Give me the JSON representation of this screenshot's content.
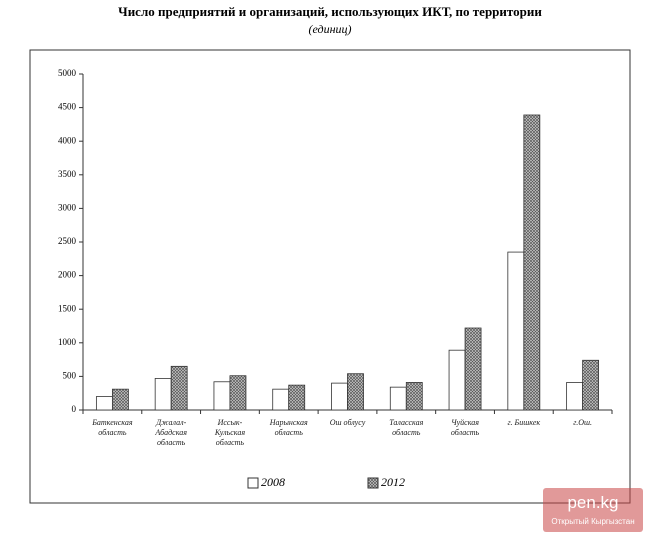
{
  "chart_data": {
    "type": "bar",
    "title": "Число предприятий и организаций, использующих ИКТ, по территории",
    "subtitle": "(единиц)",
    "categories": [
      "Баткенская область",
      "Джалал-Абадская область",
      "Иссык-Кульская область",
      "Нарынская область",
      "Ош облусу",
      "Таласская область",
      "Чуйская область",
      "г. Бишкек",
      "г.Ош."
    ],
    "series": [
      {
        "name": "2008",
        "color": "#ffffff",
        "hatch": false,
        "values": [
          200,
          470,
          420,
          310,
          400,
          340,
          890,
          2350,
          410
        ]
      },
      {
        "name": "2012",
        "color": "#9a9a9a",
        "hatch": true,
        "values": [
          310,
          650,
          510,
          370,
          540,
          410,
          1220,
          4390,
          740
        ]
      }
    ],
    "ylim": [
      0,
      5000
    ],
    "yticks": [
      0,
      500,
      1000,
      1500,
      2000,
      2500,
      3000,
      3500,
      4000,
      4500,
      5000
    ],
    "grid": false
  },
  "watermark": {
    "logo": "pen.kg",
    "caption": "Открытый Кыргызстан"
  }
}
